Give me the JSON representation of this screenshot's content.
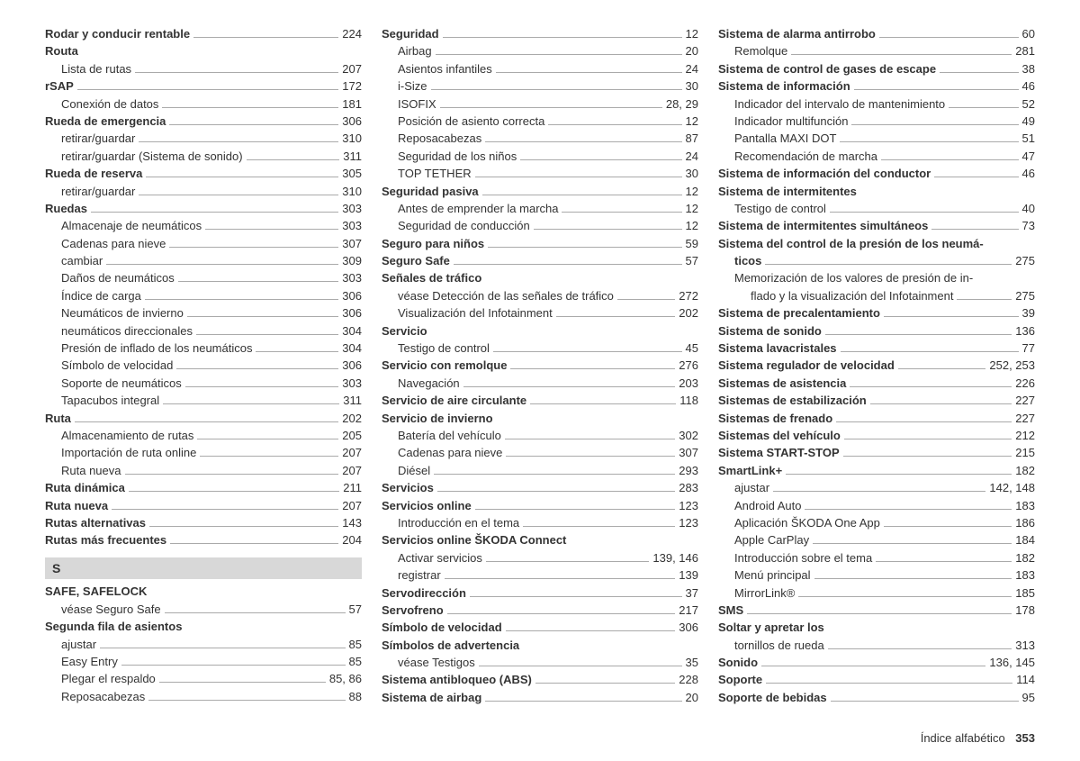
{
  "footer": {
    "label": "Índice alfabético",
    "page": "353"
  },
  "columns": [
    [
      {
        "t": "entry",
        "b": true,
        "label": "Rodar y conducir rentable",
        "page": "224"
      },
      {
        "t": "heading",
        "label": "Routa"
      },
      {
        "t": "entry",
        "sub": true,
        "label": "Lista de rutas",
        "page": "207"
      },
      {
        "t": "entry",
        "b": true,
        "label": "rSAP",
        "page": "172"
      },
      {
        "t": "entry",
        "sub": true,
        "label": "Conexión de datos",
        "page": "181"
      },
      {
        "t": "entry",
        "b": true,
        "label": "Rueda de emergencia",
        "page": "306"
      },
      {
        "t": "entry",
        "sub": true,
        "label": "retirar/guardar",
        "page": "310"
      },
      {
        "t": "entry",
        "sub": true,
        "label": "retirar/guardar (Sistema de sonido)",
        "page": "311"
      },
      {
        "t": "entry",
        "b": true,
        "label": "Rueda de reserva",
        "page": "305"
      },
      {
        "t": "entry",
        "sub": true,
        "label": "retirar/guardar",
        "page": "310"
      },
      {
        "t": "entry",
        "b": true,
        "label": "Ruedas",
        "page": "303"
      },
      {
        "t": "entry",
        "sub": true,
        "label": "Almacenaje de neumáticos",
        "page": "303"
      },
      {
        "t": "entry",
        "sub": true,
        "label": "Cadenas para nieve",
        "page": "307"
      },
      {
        "t": "entry",
        "sub": true,
        "label": "cambiar",
        "page": "309"
      },
      {
        "t": "entry",
        "sub": true,
        "label": "Daños de neumáticos",
        "page": "303"
      },
      {
        "t": "entry",
        "sub": true,
        "label": "Índice de carga",
        "page": "306"
      },
      {
        "t": "entry",
        "sub": true,
        "label": "Neumáticos de invierno",
        "page": "306"
      },
      {
        "t": "entry",
        "sub": true,
        "label": "neumáticos direccionales",
        "page": "304"
      },
      {
        "t": "entry",
        "sub": true,
        "label": "Presión de inflado de los neumáticos",
        "page": "304"
      },
      {
        "t": "entry",
        "sub": true,
        "label": "Símbolo de velocidad",
        "page": "306"
      },
      {
        "t": "entry",
        "sub": true,
        "label": "Soporte de neumáticos",
        "page": "303"
      },
      {
        "t": "entry",
        "sub": true,
        "label": "Tapacubos integral",
        "page": "311"
      },
      {
        "t": "entry",
        "b": true,
        "label": "Ruta",
        "page": "202"
      },
      {
        "t": "entry",
        "sub": true,
        "label": "Almacenamiento de rutas",
        "page": "205"
      },
      {
        "t": "entry",
        "sub": true,
        "label": "Importación de ruta online",
        "page": "207"
      },
      {
        "t": "entry",
        "sub": true,
        "label": "Ruta nueva",
        "page": "207"
      },
      {
        "t": "entry",
        "b": true,
        "label": "Ruta dinámica",
        "page": "211"
      },
      {
        "t": "entry",
        "b": true,
        "label": "Ruta nueva",
        "page": "207"
      },
      {
        "t": "entry",
        "b": true,
        "label": "Rutas alternativas",
        "page": "143"
      },
      {
        "t": "entry",
        "b": true,
        "label": "Rutas más frecuentes",
        "page": "204"
      },
      {
        "t": "section",
        "label": "S"
      },
      {
        "t": "heading",
        "label": "SAFE, SAFELOCK"
      },
      {
        "t": "entry",
        "sub": true,
        "label": "véase Seguro Safe",
        "page": "57"
      },
      {
        "t": "heading",
        "label": "Segunda fila de asientos"
      },
      {
        "t": "entry",
        "sub": true,
        "label": "ajustar",
        "page": "85"
      },
      {
        "t": "entry",
        "sub": true,
        "label": "Easy Entry",
        "page": "85"
      },
      {
        "t": "entry",
        "sub": true,
        "label": "Plegar el respaldo",
        "page": "85, 86"
      },
      {
        "t": "entry",
        "sub": true,
        "label": "Reposacabezas",
        "page": "88"
      }
    ],
    [
      {
        "t": "entry",
        "b": true,
        "label": "Seguridad",
        "page": "12"
      },
      {
        "t": "entry",
        "sub": true,
        "label": "Airbag",
        "page": "20"
      },
      {
        "t": "entry",
        "sub": true,
        "label": "Asientos infantiles",
        "page": "24"
      },
      {
        "t": "entry",
        "sub": true,
        "label": "i-Size",
        "page": "30"
      },
      {
        "t": "entry",
        "sub": true,
        "label": "ISOFIX",
        "page": "28, 29"
      },
      {
        "t": "entry",
        "sub": true,
        "label": "Posición de asiento correcta",
        "page": "12"
      },
      {
        "t": "entry",
        "sub": true,
        "label": "Reposacabezas",
        "page": "87"
      },
      {
        "t": "entry",
        "sub": true,
        "label": "Seguridad de los niños",
        "page": "24"
      },
      {
        "t": "entry",
        "sub": true,
        "label": "TOP TETHER",
        "page": "30"
      },
      {
        "t": "entry",
        "b": true,
        "label": "Seguridad pasiva",
        "page": "12"
      },
      {
        "t": "entry",
        "sub": true,
        "label": "Antes de emprender la marcha",
        "page": "12"
      },
      {
        "t": "entry",
        "sub": true,
        "label": "Seguridad de conducción",
        "page": "12"
      },
      {
        "t": "entry",
        "b": true,
        "label": "Seguro para niños",
        "page": "59"
      },
      {
        "t": "entry",
        "b": true,
        "label": "Seguro Safe",
        "page": "57"
      },
      {
        "t": "heading",
        "label": "Señales de tráfico"
      },
      {
        "t": "entry",
        "sub": true,
        "label": "véase Detección de las señales de tráfico",
        "page": "272"
      },
      {
        "t": "entry",
        "sub": true,
        "label": "Visualización del Infotainment",
        "page": "202"
      },
      {
        "t": "heading",
        "label": "Servicio"
      },
      {
        "t": "entry",
        "sub": true,
        "label": "Testigo de control",
        "page": "45"
      },
      {
        "t": "entry",
        "b": true,
        "label": "Servicio con remolque",
        "page": "276"
      },
      {
        "t": "entry",
        "sub": true,
        "label": "Navegación",
        "page": "203"
      },
      {
        "t": "entry",
        "b": true,
        "label": "Servicio de aire circulante",
        "page": "118"
      },
      {
        "t": "heading",
        "label": "Servicio de invierno"
      },
      {
        "t": "entry",
        "sub": true,
        "label": "Batería del vehículo",
        "page": "302"
      },
      {
        "t": "entry",
        "sub": true,
        "label": "Cadenas para nieve",
        "page": "307"
      },
      {
        "t": "entry",
        "sub": true,
        "label": "Diésel",
        "page": "293"
      },
      {
        "t": "entry",
        "b": true,
        "label": "Servicios",
        "page": "283"
      },
      {
        "t": "entry",
        "b": true,
        "label": "Servicios online",
        "page": "123"
      },
      {
        "t": "entry",
        "sub": true,
        "label": "Introducción en el tema",
        "page": "123"
      },
      {
        "t": "heading",
        "label": "Servicios online ŠKODA Connect"
      },
      {
        "t": "entry",
        "sub": true,
        "label": "Activar servicios",
        "page": "139, 146"
      },
      {
        "t": "entry",
        "sub": true,
        "label": "registrar",
        "page": "139"
      },
      {
        "t": "entry",
        "b": true,
        "label": "Servodirección",
        "page": "37"
      },
      {
        "t": "entry",
        "b": true,
        "label": "Servofreno",
        "page": "217"
      },
      {
        "t": "entry",
        "b": true,
        "label": "Símbolo de velocidad",
        "page": "306"
      },
      {
        "t": "heading",
        "label": "Símbolos de advertencia"
      },
      {
        "t": "entry",
        "sub": true,
        "label": "véase Testigos",
        "page": "35"
      },
      {
        "t": "entry",
        "b": true,
        "label": "Sistema antibloqueo (ABS)",
        "page": "228"
      },
      {
        "t": "entry",
        "b": true,
        "label": "Sistema de airbag",
        "page": "20"
      }
    ],
    [
      {
        "t": "entry",
        "b": true,
        "label": "Sistema de alarma antirrobo",
        "page": "60"
      },
      {
        "t": "entry",
        "sub": true,
        "label": "Remolque",
        "page": "281"
      },
      {
        "t": "entry",
        "b": true,
        "label": "Sistema de control de gases de escape",
        "page": "38"
      },
      {
        "t": "entry",
        "b": true,
        "label": "Sistema de información",
        "page": "46"
      },
      {
        "t": "entry",
        "sub": true,
        "label": "Indicador del intervalo de mantenimiento",
        "page": "52"
      },
      {
        "t": "entry",
        "sub": true,
        "label": "Indicador multifunción",
        "page": "49"
      },
      {
        "t": "entry",
        "sub": true,
        "label": "Pantalla MAXI DOT",
        "page": "51"
      },
      {
        "t": "entry",
        "sub": true,
        "label": "Recomendación de marcha",
        "page": "47"
      },
      {
        "t": "entry",
        "b": true,
        "label": "Sistema de información del conductor",
        "page": "46"
      },
      {
        "t": "heading",
        "label": "Sistema de intermitentes"
      },
      {
        "t": "entry",
        "sub": true,
        "label": "Testigo de control",
        "page": "40"
      },
      {
        "t": "entry",
        "b": true,
        "label": "Sistema de intermitentes simultáneos",
        "page": "73"
      },
      {
        "t": "wrap",
        "b": true,
        "label1": "Sistema del control de la presión de los neumá-",
        "label2": "ticos",
        "page": "275"
      },
      {
        "t": "wrap",
        "sub": true,
        "label1": "Memorización de los valores de presión de in-",
        "label2": "flado y la visualización del Infotainment",
        "page": "275"
      },
      {
        "t": "entry",
        "b": true,
        "label": "Sistema de precalentamiento",
        "page": "39"
      },
      {
        "t": "entry",
        "b": true,
        "label": "Sistema de sonido",
        "page": "136"
      },
      {
        "t": "entry",
        "b": true,
        "label": "Sistema lavacristales",
        "page": "77"
      },
      {
        "t": "entry",
        "b": true,
        "label": "Sistema regulador de velocidad",
        "page": "252, 253"
      },
      {
        "t": "entry",
        "b": true,
        "label": "Sistemas de asistencia",
        "page": "226"
      },
      {
        "t": "entry",
        "b": true,
        "label": "Sistemas de estabilización",
        "page": "227"
      },
      {
        "t": "entry",
        "b": true,
        "label": "Sistemas de frenado",
        "page": "227"
      },
      {
        "t": "entry",
        "b": true,
        "label": "Sistemas del vehículo",
        "page": "212"
      },
      {
        "t": "entry",
        "b": true,
        "label": "Sistema START-STOP",
        "page": "215"
      },
      {
        "t": "entry",
        "b": true,
        "label": "SmartLink+",
        "page": "182"
      },
      {
        "t": "entry",
        "sub": true,
        "label": "ajustar",
        "page": "142, 148"
      },
      {
        "t": "entry",
        "sub": true,
        "label": "Android Auto",
        "page": "183"
      },
      {
        "t": "entry",
        "sub": true,
        "label": "Aplicación ŠKODA One App",
        "page": "186"
      },
      {
        "t": "entry",
        "sub": true,
        "label": "Apple CarPlay",
        "page": "184"
      },
      {
        "t": "entry",
        "sub": true,
        "label": "Introducción sobre el tema",
        "page": "182"
      },
      {
        "t": "entry",
        "sub": true,
        "label": "Menú principal",
        "page": "183"
      },
      {
        "t": "entry",
        "sub": true,
        "label": "MirrorLink®",
        "page": "185"
      },
      {
        "t": "entry",
        "b": true,
        "label": "SMS",
        "page": "178"
      },
      {
        "t": "heading",
        "label": "Soltar y apretar los"
      },
      {
        "t": "entry",
        "sub": true,
        "label": "tornillos de rueda",
        "page": "313"
      },
      {
        "t": "entry",
        "b": true,
        "label": "Sonido",
        "page": "136, 145"
      },
      {
        "t": "entry",
        "b": true,
        "label": "Soporte",
        "page": "114"
      },
      {
        "t": "entry",
        "b": true,
        "label": "Soporte de bebidas",
        "page": "95"
      }
    ]
  ]
}
